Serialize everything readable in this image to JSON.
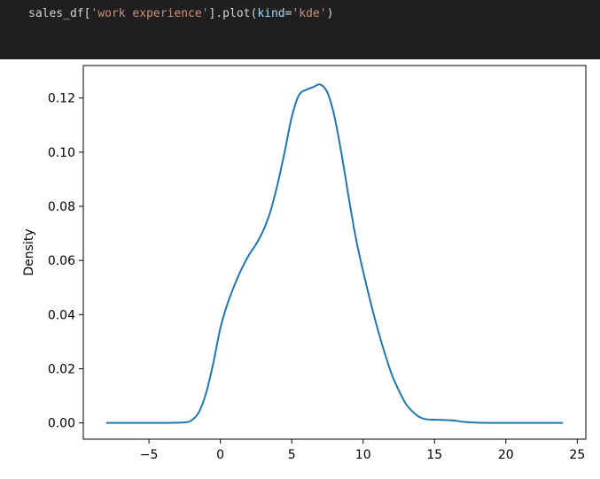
{
  "code": {
    "prefix": "sales_df[",
    "column_string": "'work experience'",
    "middle": "].plot(",
    "kwarg": "kind",
    "equals": "=",
    "kind_string": "'kde'",
    "suffix": ")"
  },
  "colors": {
    "code_background": "#1f1f1f",
    "line": "#1f77b4"
  },
  "chart_data": {
    "type": "line",
    "title": "",
    "xlabel": "",
    "ylabel": "Density",
    "xlim": [
      -9.6,
      25.6
    ],
    "ylim": [
      -0.006,
      0.132
    ],
    "x_ticks": [
      -5,
      0,
      5,
      10,
      15,
      20,
      25
    ],
    "y_ticks": [
      0.0,
      0.02,
      0.04,
      0.06,
      0.08,
      0.1,
      0.12
    ],
    "x_tick_labels": [
      "−5",
      "0",
      "5",
      "10",
      "15",
      "20",
      "25"
    ],
    "y_tick_labels": [
      "0.00",
      "0.02",
      "0.04",
      "0.06",
      "0.08",
      "0.10",
      "0.12"
    ],
    "grid": false,
    "series": [
      {
        "x": [
          -8,
          -6,
          -4,
          -2.5,
          -2,
          -1.5,
          -1,
          -0.5,
          0,
          0.5,
          1,
          1.5,
          2,
          2.5,
          3,
          3.5,
          4,
          4.5,
          5,
          5.5,
          6,
          6.5,
          7,
          7.5,
          8,
          8.5,
          9,
          9.5,
          10,
          10.5,
          11,
          11.5,
          12,
          12.5,
          13,
          13.5,
          14,
          14.5,
          15,
          15.5,
          16,
          16.5,
          17,
          18,
          20,
          22,
          24
        ],
        "y": [
          0.0,
          0.0,
          0.0,
          0.0002,
          0.001,
          0.004,
          0.011,
          0.022,
          0.035,
          0.044,
          0.051,
          0.057,
          0.062,
          0.066,
          0.071,
          0.078,
          0.088,
          0.1,
          0.113,
          0.121,
          0.123,
          0.124,
          0.125,
          0.122,
          0.113,
          0.099,
          0.083,
          0.068,
          0.056,
          0.045,
          0.035,
          0.026,
          0.018,
          0.012,
          0.007,
          0.004,
          0.002,
          0.0013,
          0.0012,
          0.0011,
          0.001,
          0.0008,
          0.0004,
          0.0001,
          0.0,
          0.0,
          0.0
        ]
      }
    ]
  }
}
